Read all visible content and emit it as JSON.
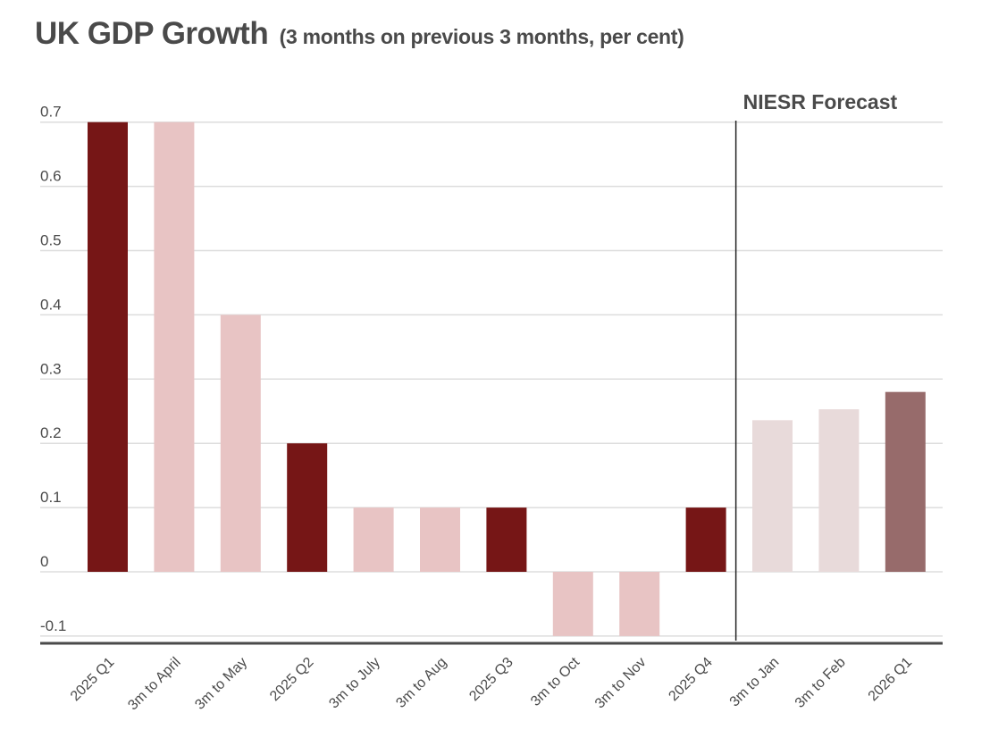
{
  "chart_data": {
    "type": "bar",
    "title": "UK GDP Growth",
    "subtitle": "(3 months on previous 3 months, per cent)",
    "xlabel": "",
    "ylabel": "",
    "ylim": [
      -0.1,
      0.7
    ],
    "yticks": [
      0.7,
      0.6,
      0.5,
      0.4,
      0.3,
      0.2,
      0.1,
      0,
      -0.1
    ],
    "ytick_labels": [
      "0.7",
      "0.6",
      "0.5",
      "0.4",
      "0.3",
      "0.2",
      "0.1",
      "0",
      "-0.1"
    ],
    "grid": true,
    "categories": [
      "2025 Q1",
      "3m to April",
      "3m to May",
      "2025 Q2",
      "3m to July",
      "3m to Aug",
      "2025 Q3",
      "3m to Oct",
      "3m to Nov",
      "2025 Q4",
      "3m to Jan",
      "3m to Feb",
      "2026 Q1"
    ],
    "values": [
      0.7,
      0.7,
      0.4,
      0.2,
      0.1,
      0.1,
      0.1,
      -0.1,
      -0.1,
      0.1,
      0.236,
      0.253,
      0.28
    ],
    "bar_kinds": [
      "quarter",
      "rolling",
      "rolling",
      "quarter",
      "rolling",
      "rolling",
      "quarter",
      "rolling",
      "rolling",
      "quarter",
      "forecast-rolling",
      "forecast-rolling",
      "forecast-quarter"
    ],
    "colors": {
      "quarter": "#761616",
      "rolling": "#e8c4c4",
      "forecast-rolling": "#e8dada",
      "forecast-quarter": "#976b6b",
      "grid": "#dddddd",
      "axis": "#4a4a4a",
      "divider": "#222222"
    },
    "annotations": [
      {
        "text": "NIESR Forecast",
        "divider_after_category": "2025 Q4"
      }
    ]
  }
}
